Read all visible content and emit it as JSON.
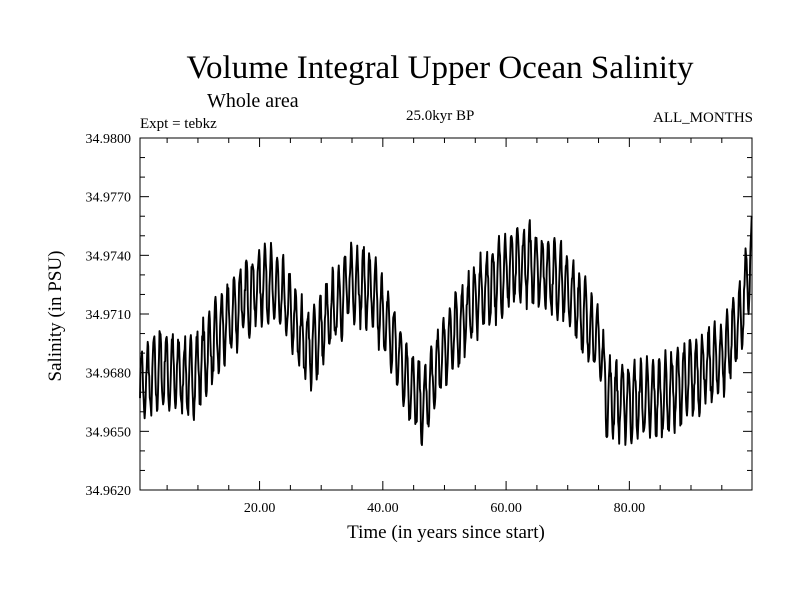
{
  "chart_data": {
    "type": "line",
    "title": "Volume Integral Upper Ocean Salinity",
    "subtitle": "Whole area",
    "annotations": {
      "experiment": "Expt = tebkz",
      "period": "25.0kyr BP",
      "months": "ALL_MONTHS"
    },
    "xlabel": "Time (in years since start)",
    "ylabel": "Salinity (in PSU)",
    "xlim": [
      0.6,
      99.9
    ],
    "ylim": [
      34.962,
      34.98
    ],
    "x_ticks": [
      20,
      40,
      60,
      80
    ],
    "x_tick_labels": [
      "20.00",
      "40.00",
      "60.00",
      "80.00"
    ],
    "y_ticks": [
      34.962,
      34.965,
      34.968,
      34.971,
      34.974,
      34.977,
      34.98
    ],
    "y_tick_labels": [
      "34.9620",
      "34.9650",
      "34.9680",
      "34.9710",
      "34.9740",
      "34.9770",
      "34.9800"
    ],
    "grid": false,
    "series": [
      {
        "name": "Salinity",
        "color": "#000000",
        "baseline_points": [
          {
            "t": 0.6,
            "v": 34.9672
          },
          {
            "t": 4.0,
            "v": 34.9682
          },
          {
            "t": 9.0,
            "v": 34.9677
          },
          {
            "t": 13.0,
            "v": 34.9697
          },
          {
            "t": 17.0,
            "v": 34.9716
          },
          {
            "t": 21.0,
            "v": 34.9727
          },
          {
            "t": 24.0,
            "v": 34.9717
          },
          {
            "t": 27.0,
            "v": 34.9697
          },
          {
            "t": 28.5,
            "v": 34.9692
          },
          {
            "t": 31.0,
            "v": 34.9707
          },
          {
            "t": 35.0,
            "v": 34.9727
          },
          {
            "t": 38.0,
            "v": 34.9722
          },
          {
            "t": 41.0,
            "v": 34.9702
          },
          {
            "t": 44.0,
            "v": 34.9677
          },
          {
            "t": 46.5,
            "v": 34.9662
          },
          {
            "t": 50.0,
            "v": 34.9692
          },
          {
            "t": 55.0,
            "v": 34.9717
          },
          {
            "t": 60.0,
            "v": 34.9732
          },
          {
            "t": 64.0,
            "v": 34.9736
          },
          {
            "t": 69.0,
            "v": 34.9727
          },
          {
            "t": 73.0,
            "v": 34.9707
          },
          {
            "t": 75.5,
            "v": 34.9692
          },
          {
            "t": 76.2,
            "v": 34.9668
          },
          {
            "t": 80.0,
            "v": 34.9665
          },
          {
            "t": 85.0,
            "v": 34.9667
          },
          {
            "t": 90.0,
            "v": 34.9677
          },
          {
            "t": 95.0,
            "v": 34.9687
          },
          {
            "t": 98.0,
            "v": 34.9707
          },
          {
            "t": 99.9,
            "v": 34.974
          }
        ],
        "oscillation": {
          "period_years": 1.0,
          "amplitude_psu": 0.0018,
          "noise_psu": 0.0005,
          "samples_per_year": 12
        }
      }
    ]
  }
}
